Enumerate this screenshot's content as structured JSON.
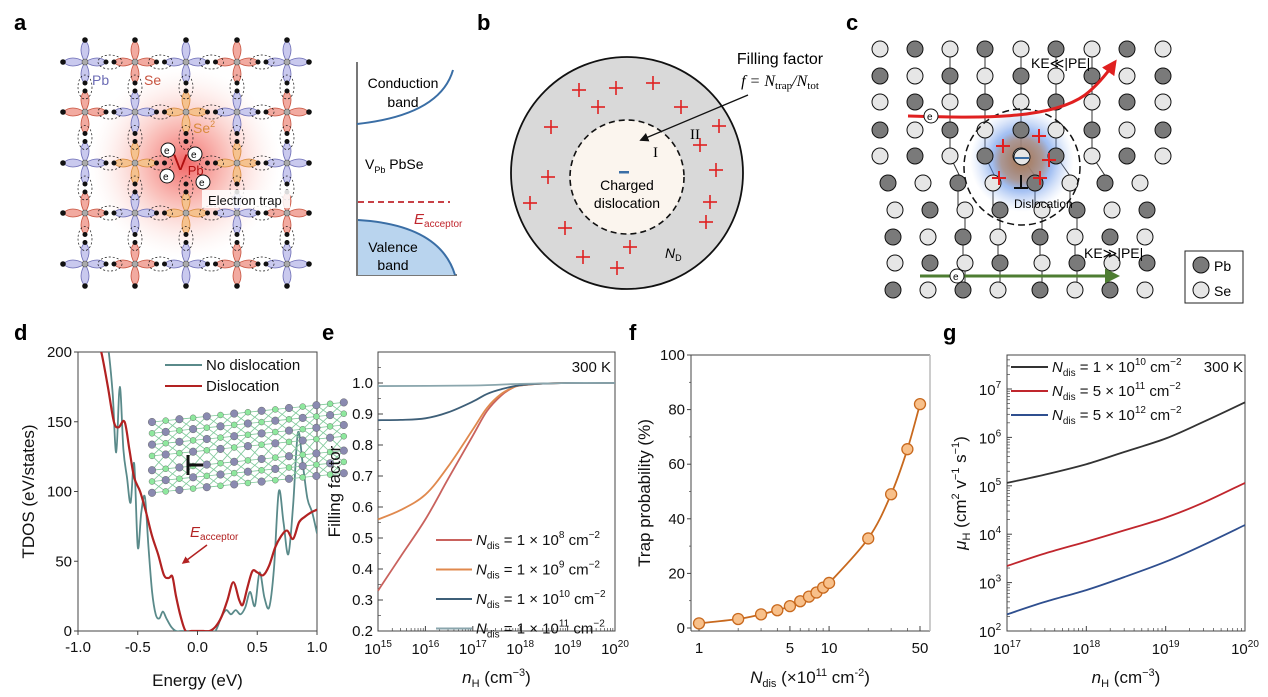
{
  "panels": {
    "a": {
      "label": "a",
      "atom_labels": {
        "pb": "Pb",
        "se": "Se",
        "se2": "Se",
        "se2_sup": "2",
        "vpb": "V",
        "vpb_sub": "Pb"
      },
      "electron_label": "e",
      "electron_sup": "-",
      "electron_trap": "Electron trap",
      "band": {
        "conduction": [
          "Conduction",
          "band"
        ],
        "material": "V",
        "material_sub": "Pb",
        "material_rest": " PbSe",
        "acceptor": "E",
        "acceptor_sub": "acceptor",
        "valence": [
          "Valence",
          "band"
        ]
      },
      "colors": {
        "pb_lobe": "#c9c9ee",
        "se_lobe": "#f2aaa0",
        "se2_lobe": "#f5c28f",
        "vacancy_glow": "#ef4a4a",
        "band_line": "#3a6ea5",
        "valence_fill": "#b9d4ee",
        "acceptor": "#c0262d"
      }
    },
    "b": {
      "label": "b",
      "filling_factor_title": "Filling factor",
      "formula": "f = N",
      "formula_sub1": "trap",
      "formula_mid": "/N",
      "formula_sub2": "tot",
      "region_inner": "I",
      "region_outer": "II",
      "center_text": [
        "Charged",
        "dislocation"
      ],
      "donor_label": "N",
      "donor_sub": "D",
      "colors": {
        "outer": "#d9d9d9",
        "inner": "#fbf5ee",
        "plus": "#e02020",
        "minus": "#3a6ea5"
      }
    },
    "c": {
      "label": "c",
      "scatter_top": "KE≪|PE|",
      "scatter_bottom": "KE≫|PE|",
      "dislocation_label": "Dislocation",
      "electron_label": "e",
      "legend": [
        {
          "name": "Pb",
          "color": "#7a7a7a"
        },
        {
          "name": "Se",
          "color": "#e6e6e6"
        }
      ],
      "colors": {
        "trapped_arrow": "#e02020",
        "free_arrow": "#4e7d32"
      }
    }
  },
  "chart_data": [
    {
      "id": "d",
      "label": "d",
      "type": "line",
      "title": "",
      "xlabel": "Energy (eV)",
      "ylabel": "TDOS (eV/states)",
      "xlim": [
        -1.0,
        1.0
      ],
      "ylim": [
        0,
        200
      ],
      "xticks": [
        -1.0,
        -0.5,
        0.0,
        0.5,
        1.0
      ],
      "xtick_labels": [
        "-1.0",
        "-0.5",
        "0.0",
        "0.5",
        "1.0"
      ],
      "yticks": [
        0,
        50,
        100,
        150,
        200
      ],
      "ytick_labels": [
        "0",
        "50",
        "100",
        "150",
        "200"
      ],
      "legend_position": "top-right",
      "annotation": {
        "text": "E",
        "sub": "acceptor",
        "x": -0.2,
        "y": 40
      },
      "inset": "dislocation atomic structure",
      "series": [
        {
          "name": "No dislocation",
          "color": "#5a8a8a",
          "x": [
            -1.0,
            -0.98,
            -0.95,
            -0.9,
            -0.85,
            -0.8,
            -0.75,
            -0.71,
            -0.68,
            -0.65,
            -0.62,
            -0.59,
            -0.56,
            -0.53,
            -0.5,
            -0.47,
            -0.44,
            -0.41,
            -0.38,
            -0.35,
            -0.32,
            -0.29,
            -0.26,
            -0.22,
            -0.18,
            -0.14,
            -0.1,
            -0.05,
            0.0,
            0.05,
            0.1,
            0.15,
            0.2,
            0.24,
            0.28,
            0.32,
            0.36,
            0.4,
            0.44,
            0.48,
            0.52,
            0.56,
            0.6,
            0.64,
            0.68,
            0.72,
            0.76,
            0.8,
            0.84,
            0.88,
            0.92,
            0.96,
            1.0
          ],
          "y": [
            200,
            260,
            300,
            290,
            260,
            230,
            205,
            170,
            128,
            175,
            130,
            110,
            92,
            120,
            60,
            85,
            96,
            60,
            28,
            12,
            9,
            14,
            9,
            3,
            0,
            0,
            0,
            0,
            0,
            0,
            0,
            0,
            10,
            15,
            12,
            15,
            12,
            17,
            28,
            18,
            42,
            24,
            17,
            45,
            100,
            78,
            55,
            90,
            142,
            120,
            95,
            85,
            70
          ]
        },
        {
          "name": "Dislocation",
          "color": "#b22222",
          "x": [
            -1.0,
            -0.95,
            -0.9,
            -0.85,
            -0.8,
            -0.75,
            -0.7,
            -0.66,
            -0.61,
            -0.57,
            -0.53,
            -0.48,
            -0.43,
            -0.38,
            -0.33,
            -0.28,
            -0.24,
            -0.21,
            -0.18,
            -0.14,
            -0.1,
            -0.05,
            0.0,
            0.05,
            0.1,
            0.15,
            0.2,
            0.25,
            0.3,
            0.35,
            0.38,
            0.42,
            0.46,
            0.5,
            0.55,
            0.6,
            0.65,
            0.7,
            0.75,
            0.8,
            0.85,
            0.9,
            0.95,
            1.0
          ],
          "y": [
            260,
            250,
            235,
            215,
            198,
            175,
            150,
            146,
            150,
            130,
            110,
            100,
            85,
            68,
            55,
            40,
            38,
            39,
            25,
            10,
            0,
            0,
            0,
            0,
            0,
            3,
            10,
            22,
            35,
            22,
            19,
            32,
            43,
            42,
            40,
            47,
            60,
            68,
            72,
            66,
            78,
            82,
            85,
            87
          ]
        }
      ]
    },
    {
      "id": "e",
      "label": "e",
      "type": "line",
      "title": "",
      "annotation": "300 K",
      "xlabel": "n",
      "xlabel_sub": "H",
      "xlabel_unit": "(cm",
      "xlabel_sup": "−3",
      "ylabel": "Filling factor",
      "xscale": "log",
      "xlim": [
        1000000000000000.0,
        1e+20
      ],
      "ylim": [
        0.2,
        1.1
      ],
      "xtick_exponents": [
        15,
        16,
        17,
        18,
        19,
        20
      ],
      "yticks": [
        0.2,
        0.3,
        0.4,
        0.5,
        0.6,
        0.7,
        0.8,
        0.9,
        1.0
      ],
      "ytick_labels": [
        "0.2",
        "0.3",
        "0.4",
        "0.5",
        "0.6",
        "0.7",
        "0.8",
        "0.9",
        "1.0"
      ],
      "legend_position": "bottom-right",
      "series": [
        {
          "name": "N_dis = 1 × 10^8 cm^−2",
          "legend_exp": "8",
          "color": "#c9625d",
          "x": [
            1000000000000000.0,
            3000000000000000.0,
            1e+16,
            3e+16,
            1e+17,
            2e+17,
            4e+17,
            7e+17,
            1e+18,
            3e+18,
            1e+19,
            1e+20
          ],
          "y": [
            0.33,
            0.44,
            0.56,
            0.69,
            0.83,
            0.91,
            0.96,
            0.985,
            0.992,
            0.998,
            1.0,
            1.0
          ]
        },
        {
          "name": "N_dis = 1 × 10^9 cm^−2",
          "legend_exp": "9",
          "color": "#e0894e",
          "x": [
            1000000000000000.0,
            3000000000000000.0,
            1e+16,
            3e+16,
            1e+17,
            2e+17,
            4e+17,
            7e+17,
            1e+18,
            3e+18,
            1e+19,
            1e+20
          ],
          "y": [
            0.56,
            0.59,
            0.64,
            0.73,
            0.85,
            0.92,
            0.965,
            0.985,
            0.992,
            0.998,
            1.0,
            1.0
          ]
        },
        {
          "name": "N_dis = 1 × 10^10 cm^−2",
          "legend_exp": "10",
          "color": "#3e5f78",
          "x": [
            1000000000000000.0,
            3000000000000000.0,
            1e+16,
            3e+16,
            1e+17,
            2e+17,
            4e+17,
            1e+18,
            3e+18,
            1e+19,
            1e+20
          ],
          "y": [
            0.88,
            0.881,
            0.886,
            0.905,
            0.94,
            0.965,
            0.98,
            0.993,
            0.998,
            1.0,
            1.0
          ]
        },
        {
          "name": "N_dis = 1 × 10^11 cm^−2",
          "legend_exp": "11",
          "color": "#8aa6ad",
          "x": [
            1000000000000000.0,
            1e+17,
            1e+18,
            1e+19,
            1e+20
          ],
          "y": [
            0.99,
            0.992,
            0.997,
            1.0,
            1.0
          ]
        }
      ]
    },
    {
      "id": "f",
      "label": "f",
      "type": "scatter",
      "title": "",
      "xlabel": "N",
      "xlabel_sub": "dis",
      "xlabel_rest": " (×10",
      "xlabel_sup": "11",
      "xlabel_unit": " cm",
      "xlabel_sup2": "-2",
      "xlabel_close": ")",
      "ylabel": "Trap probability (%)",
      "xscale": "log",
      "xlim": [
        0.93,
        55
      ],
      "ylim": [
        -2,
        100
      ],
      "xticks": [
        1,
        5,
        10,
        50
      ],
      "xtick_labels": [
        "1",
        "5",
        "10",
        "50"
      ],
      "yticks": [
        0,
        20,
        40,
        60,
        80,
        100
      ],
      "ytick_labels": [
        "0",
        "20",
        "40",
        "60",
        "80",
        "100"
      ],
      "series": [
        {
          "name": "Trap probability",
          "color": "#c8691e",
          "marker_fill": "#f8c08a",
          "x": [
            1,
            2,
            3,
            4,
            5,
            6,
            7,
            8,
            9,
            10,
            20,
            30,
            40,
            50
          ],
          "y": [
            1.7,
            3.3,
            5.0,
            6.5,
            8.0,
            9.8,
            11.5,
            13.0,
            14.8,
            16.5,
            32.8,
            49.0,
            65.5,
            82.0
          ]
        }
      ]
    },
    {
      "id": "g",
      "label": "g",
      "type": "line",
      "title": "",
      "annotation": "300 K",
      "xlabel": "n",
      "xlabel_sub": "H",
      "xlabel_unit": "(cm",
      "xlabel_sup": "−3",
      "ylabel": "μ",
      "ylabel_sub": "H",
      "ylabel_rest": " (cm",
      "ylabel_sup1": "2",
      "ylabel_mid": " v",
      "ylabel_sup2": "−1",
      "ylabel_mid2": " s",
      "ylabel_sup3": "−1",
      "ylabel_close": ")",
      "xscale": "log",
      "yscale": "log",
      "xlim": [
        1e+17,
        1e+20
      ],
      "ylim": [
        100.0,
        50000000.0
      ],
      "xtick_exponents": [
        17,
        18,
        19,
        20
      ],
      "ytick_exponents": [
        2,
        3,
        4,
        5,
        6,
        7
      ],
      "legend_position": "top-left",
      "series": [
        {
          "name": "N_dis = 1 × 10^10 cm^−2",
          "legend_mant": "1",
          "legend_exp": "10",
          "color": "#333333",
          "x": [
            1e+17,
            3e+17,
            1e+18,
            3e+18,
            1e+19,
            3e+19,
            1e+20
          ],
          "y": [
            115000.0,
            170000.0,
            280000.0,
            500000.0,
            950000.0,
            2100000.0,
            5300000.0
          ]
        },
        {
          "name": "N_dis = 5 × 10^11 cm^−2",
          "legend_mant": "5",
          "legend_exp": "11",
          "color": "#c0262d",
          "x": [
            1e+17,
            3e+17,
            1e+18,
            3e+18,
            1e+19,
            3e+19,
            1e+20
          ],
          "y": [
            2200.0,
            4000.0,
            7000.0,
            12000.0,
            22000.0,
            45000.0,
            115000.0
          ]
        },
        {
          "name": "N_dis = 5 × 10^12 cm^−2",
          "legend_mant": "5",
          "legend_exp": "12",
          "color": "#2f4f8f",
          "x": [
            1e+17,
            3e+17,
            1e+18,
            3e+18,
            1e+19,
            3e+19,
            1e+20
          ],
          "y": [
            220.0,
            400.0,
            700.0,
            1300.0,
            2700.0,
            6000.0,
            15500.0
          ]
        }
      ]
    }
  ]
}
